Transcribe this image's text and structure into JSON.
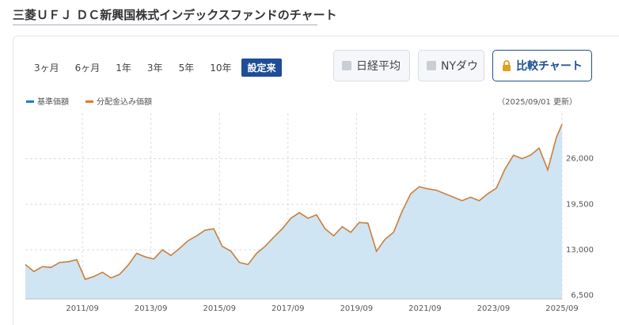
{
  "page": {
    "title": "三菱ＵＦＪ ＤＣ新興国株式インデックスファンドのチャート",
    "periods": [
      {
        "label": "3ヶ月",
        "selected": false
      },
      {
        "label": "6ヶ月",
        "selected": false
      },
      {
        "label": "1年",
        "selected": false
      },
      {
        "label": "3年",
        "selected": false
      },
      {
        "label": "5年",
        "selected": false
      },
      {
        "label": "10年",
        "selected": false
      },
      {
        "label": "設定来",
        "selected": true
      }
    ],
    "compare": [
      "日経平均",
      "NYダウ"
    ],
    "compare_button": "比較チャート",
    "updated": "（2025/09/01 更新）"
  },
  "chart_data": {
    "type": "line",
    "area": true,
    "x": [
      "2010/01",
      "2010/04",
      "2010/07",
      "2010/10",
      "2011/01",
      "2011/04",
      "2011/07",
      "2011/10",
      "2012/01",
      "2012/04",
      "2012/07",
      "2012/10",
      "2013/01",
      "2013/04",
      "2013/07",
      "2013/10",
      "2014/01",
      "2014/04",
      "2014/07",
      "2014/10",
      "2015/01",
      "2015/04",
      "2015/07",
      "2015/10",
      "2016/01",
      "2016/04",
      "2016/07",
      "2016/10",
      "2017/01",
      "2017/04",
      "2017/07",
      "2017/10",
      "2018/01",
      "2018/04",
      "2018/07",
      "2018/10",
      "2019/01",
      "2019/04",
      "2019/07",
      "2019/10",
      "2020/01",
      "2020/04",
      "2020/07",
      "2020/10",
      "2021/01",
      "2021/04",
      "2021/07",
      "2021/10",
      "2022/01",
      "2022/04",
      "2022/07",
      "2022/10",
      "2023/01",
      "2023/04",
      "2023/07",
      "2023/10",
      "2024/01",
      "2024/04",
      "2024/07",
      "2024/10",
      "2025/01",
      "2025/04",
      "2025/07",
      "2025/09"
    ],
    "series": [
      {
        "name": "基準価額",
        "color": "#1a7fc1",
        "values": [
          10900,
          9900,
          10600,
          10500,
          11200,
          11300,
          11600,
          8800,
          9200,
          9800,
          9000,
          9500,
          10800,
          12500,
          12000,
          11700,
          13000,
          12200,
          13200,
          14300,
          15000,
          15800,
          16000,
          13500,
          12800,
          11200,
          10900,
          12500,
          13500,
          14800,
          16000,
          17500,
          18300,
          17500,
          18000,
          16000,
          15000,
          16300,
          15500,
          16900,
          16800,
          12800,
          14500,
          15500,
          18500,
          21000,
          22000,
          21700,
          21500,
          21000,
          20500,
          20000,
          20500,
          20000,
          21000,
          21800,
          24500,
          26500,
          26000,
          26500,
          27500,
          24400,
          29000,
          30900
        ]
      },
      {
        "name": "分配金込み価額",
        "color": "#e07b27",
        "values": [
          10900,
          9900,
          10600,
          10500,
          11200,
          11300,
          11600,
          8800,
          9200,
          9800,
          9000,
          9500,
          10800,
          12500,
          12000,
          11700,
          13000,
          12200,
          13200,
          14300,
          15000,
          15800,
          16000,
          13500,
          12800,
          11200,
          10900,
          12500,
          13500,
          14800,
          16000,
          17500,
          18300,
          17500,
          18000,
          16000,
          15000,
          16300,
          15500,
          16900,
          16800,
          12800,
          14500,
          15500,
          18500,
          21000,
          22000,
          21700,
          21500,
          21000,
          20500,
          20000,
          20500,
          20000,
          21000,
          21800,
          24500,
          26500,
          26000,
          26500,
          27500,
          24400,
          29000,
          30900
        ]
      }
    ],
    "xlim": [
      "2010/01",
      "2025/09"
    ],
    "xticks": [
      "2011/09",
      "2013/09",
      "2015/09",
      "2017/09",
      "2019/09",
      "2021/09",
      "2023/09",
      "2025/09"
    ],
    "ylim": [
      6000,
      32500
    ],
    "yticks": [
      {
        "value": 6500,
        "label": "6,500"
      },
      {
        "value": 13000,
        "label": "13,000"
      },
      {
        "value": 19500,
        "label": "19,500"
      },
      {
        "value": 26000,
        "label": "26,000"
      }
    ],
    "grid": true
  }
}
